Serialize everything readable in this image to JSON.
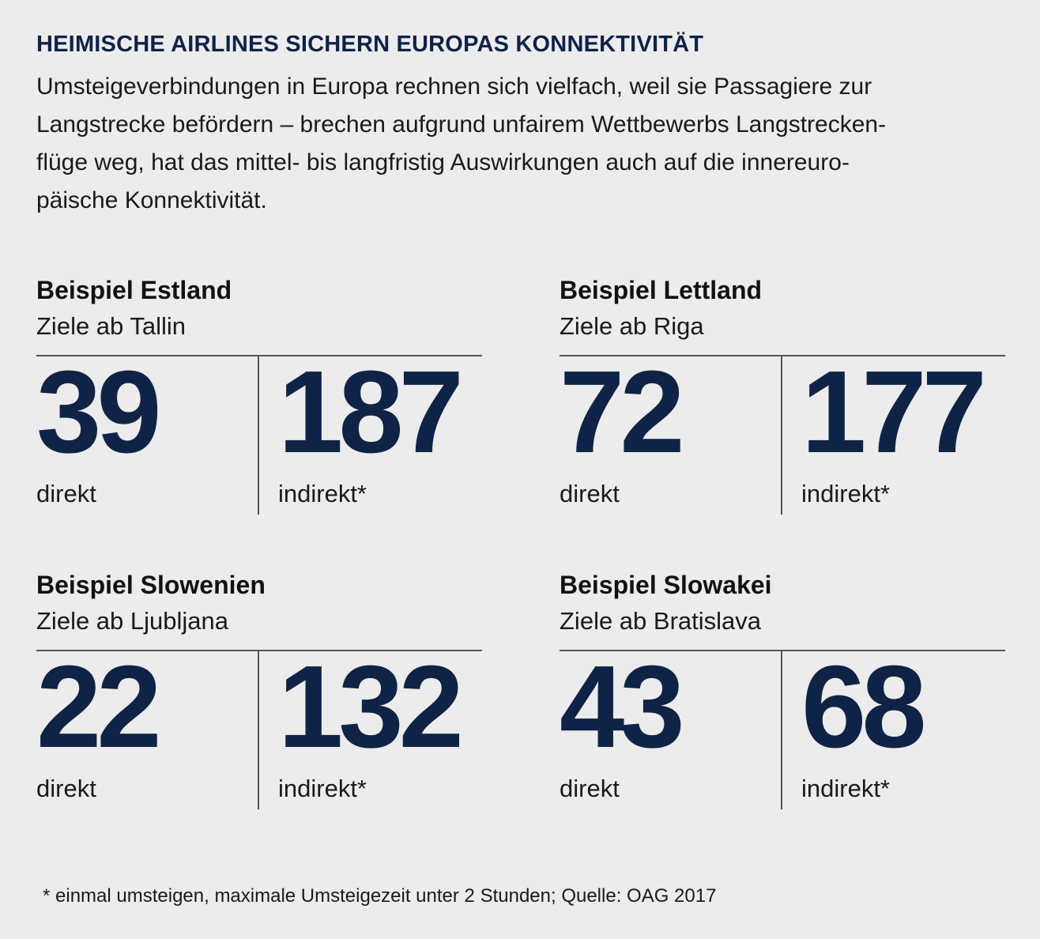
{
  "title": "HEIMISCHE AIRLINES SICHERN EUROPAS KONNEKTIVITÄT",
  "intro_lines": [
    "Umsteigeverbindungen in Europa rechnen sich vielfach, weil sie Passagiere zur",
    "Langstrecke befördern – brechen aufgrund unfairem Wettbewerbs Langstrecken-",
    "flüge weg, hat das mittel- bis langfristig Auswirkungen auch auf die innereuro-",
    "päische Konnektivität."
  ],
  "examples": [
    {
      "heading": "Beispiel Estland",
      "subtitle": "Ziele ab Tallin",
      "direct": "39",
      "direct_label": "direkt",
      "indirect": "187",
      "indirect_label": "indirekt*"
    },
    {
      "heading": "Beispiel Lettland",
      "subtitle": "Ziele ab Riga",
      "direct": "72",
      "direct_label": "direkt",
      "indirect": "177",
      "indirect_label": "indirekt*"
    },
    {
      "heading": "Beispiel Slowenien",
      "subtitle": "Ziele ab Ljubljana",
      "direct": "22",
      "direct_label": "direkt",
      "indirect": "132",
      "indirect_label": "indirekt*"
    },
    {
      "heading": "Beispiel Slowakei",
      "subtitle": "Ziele ab Bratislava",
      "direct": "43",
      "direct_label": "direkt",
      "indirect": "68",
      "indirect_label": "indirekt*"
    }
  ],
  "footnote": "* einmal umsteigen, maximale Umsteigezeit unter 2 Stunden; Quelle: OAG 2017",
  "colors": {
    "accent": "#0f2347",
    "background": "#ececec"
  }
}
